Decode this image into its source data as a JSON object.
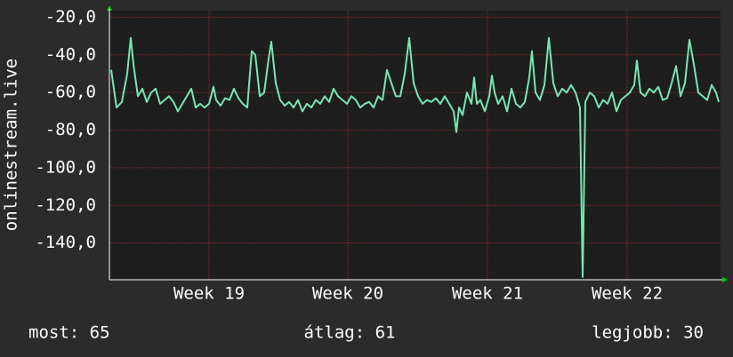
{
  "chart_data": {
    "type": "line",
    "y_label": "onlinestream.live",
    "xlim": [
      123,
      810
    ],
    "xticks": [
      {
        "value": 235,
        "label": "Week 19"
      },
      {
        "value": 391,
        "label": "Week 20"
      },
      {
        "value": 548,
        "label": "Week 21"
      },
      {
        "value": 705,
        "label": "Week 22"
      }
    ],
    "ylim": [
      -159.5,
      -16.5
    ],
    "yticks": [
      {
        "value": -20,
        "label": "-20,0"
      },
      {
        "value": -40,
        "label": "-40,0"
      },
      {
        "value": -60,
        "label": "-60,0"
      },
      {
        "value": -80,
        "label": "-80,0"
      },
      {
        "value": -100,
        "label": "-100,0"
      },
      {
        "value": -120,
        "label": "-120,0"
      },
      {
        "value": -140,
        "label": "-140,0"
      }
    ],
    "grid": true,
    "series": [
      {
        "name": null,
        "color": "#78e6b4",
        "x": [
          125,
          131,
          137,
          143,
          147,
          150,
          155,
          160,
          165,
          170,
          175,
          180,
          185,
          190,
          195,
          200,
          205,
          210,
          215,
          220,
          225,
          230,
          235,
          240,
          243,
          248,
          253,
          258,
          263,
          268,
          273,
          278,
          283,
          287,
          292,
          297,
          302,
          305,
          310,
          315,
          320,
          325,
          330,
          335,
          340,
          345,
          350,
          355,
          360,
          365,
          370,
          375,
          380,
          385,
          390,
          395,
          400,
          405,
          410,
          415,
          420,
          425,
          430,
          435,
          440,
          445,
          450,
          455,
          460,
          465,
          470,
          475,
          480,
          485,
          490,
          495,
          500,
          505,
          510,
          513,
          516,
          520,
          525,
          530,
          533,
          536,
          540,
          545,
          550,
          553,
          556,
          560,
          565,
          570,
          575,
          580,
          585,
          590,
          595,
          598,
          602,
          607,
          612,
          617,
          622,
          627,
          632,
          637,
          642,
          647,
          652,
          655,
          658,
          663,
          668,
          673,
          678,
          683,
          688,
          693,
          698,
          703,
          708,
          713,
          716,
          720,
          725,
          730,
          735,
          740,
          745,
          750,
          755,
          760,
          765,
          770,
          775,
          780,
          785,
          790,
          795,
          800,
          805,
          808
        ],
        "values": [
          -48,
          -68,
          -65,
          -50,
          -31,
          -45,
          -62,
          -58,
          -65,
          -60,
          -58,
          -66,
          -64,
          -62,
          -65,
          -70,
          -66,
          -62,
          -58,
          -68,
          -66,
          -68,
          -66,
          -57,
          -64,
          -67,
          -63,
          -64,
          -58,
          -63,
          -66,
          -68,
          -38,
          -40,
          -62,
          -60,
          -42,
          -33,
          -55,
          -64,
          -67,
          -65,
          -68,
          -64,
          -70,
          -66,
          -68,
          -64,
          -66,
          -62,
          -65,
          -58,
          -62,
          -64,
          -66,
          -62,
          -64,
          -68,
          -66,
          -65,
          -68,
          -62,
          -64,
          -48,
          -55,
          -62,
          -62,
          -50,
          -31,
          -55,
          -62,
          -66,
          -64,
          -65,
          -63,
          -66,
          -62,
          -66,
          -70,
          -81,
          -68,
          -72,
          -60,
          -66,
          -52,
          -66,
          -64,
          -70,
          -62,
          -51,
          -60,
          -66,
          -62,
          -70,
          -58,
          -66,
          -68,
          -65,
          -52,
          -38,
          -60,
          -64,
          -56,
          -31,
          -55,
          -62,
          -58,
          -60,
          -56,
          -60,
          -68,
          -158,
          -65,
          -60,
          -62,
          -68,
          -64,
          -66,
          -60,
          -70,
          -64,
          -62,
          -60,
          -56,
          -43,
          -60,
          -62,
          -58,
          -60,
          -57,
          -64,
          -63,
          -55,
          -46,
          -62,
          -55,
          -32,
          -45,
          -60,
          -62,
          -64,
          -56,
          -60,
          -65
        ]
      }
    ],
    "footer": [
      "most: 65",
      "átlag: 61",
      "legjobb: 30"
    ]
  }
}
